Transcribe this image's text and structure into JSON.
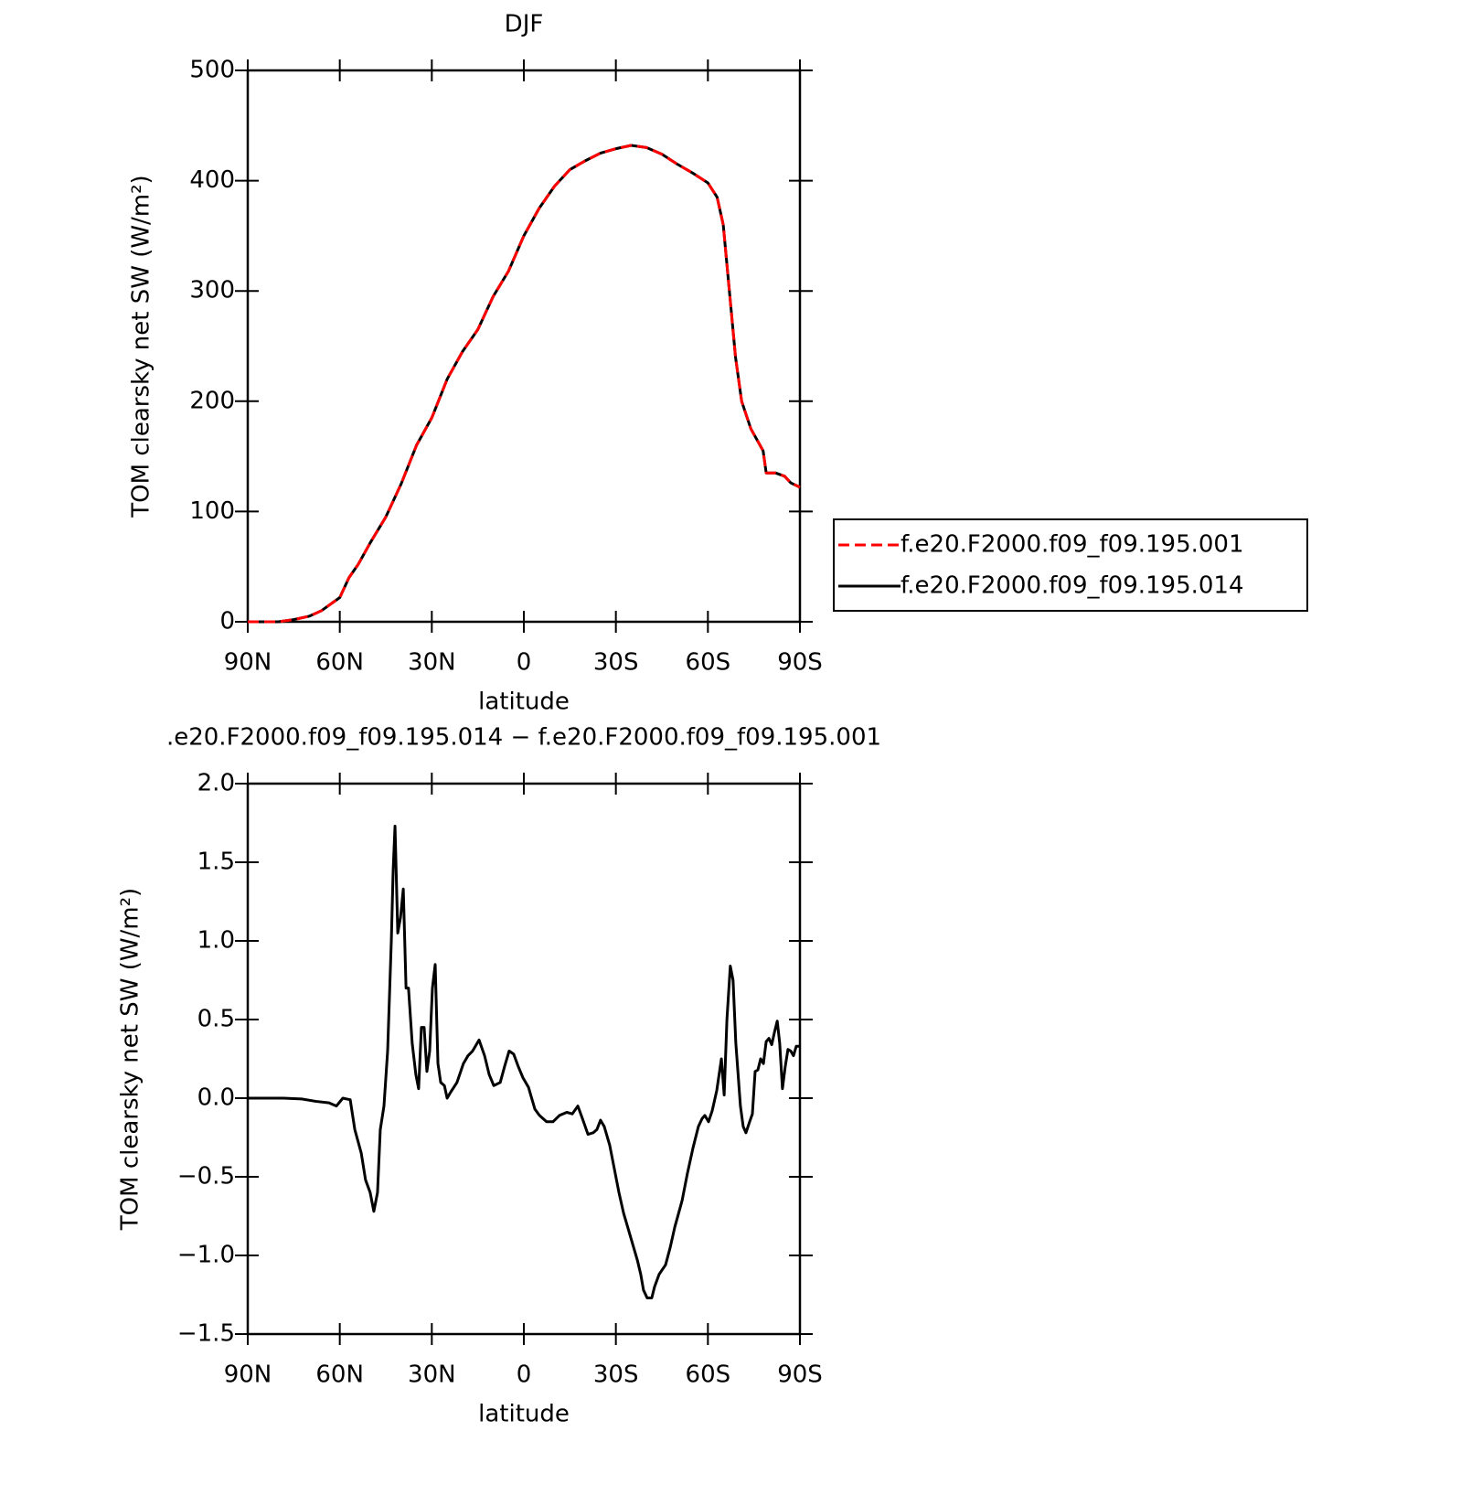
{
  "chart_data": [
    {
      "type": "line",
      "title": "DJF",
      "xlabel": "latitude",
      "ylabel": "TOM clearsky net SW (W/m²)",
      "x": [
        90,
        80,
        75,
        70,
        66,
        60,
        57,
        54,
        50,
        45,
        40,
        35,
        30,
        25,
        20,
        15,
        10,
        5,
        0,
        -5,
        -10,
        -15,
        -20,
        -25,
        -30,
        -35,
        -40,
        -45,
        -50,
        -55,
        -60,
        -63,
        -65,
        -67,
        -69,
        -71,
        -74,
        -77,
        -78,
        -79,
        -82,
        -85,
        -87,
        -90
      ],
      "series": [
        {
          "name": "f.e20.F2000.f09_f09.195.014",
          "color": "#000000",
          "dashed": false,
          "values": [
            0,
            0,
            2,
            5,
            10,
            22,
            40,
            52,
            72,
            95,
            125,
            160,
            185,
            220,
            245,
            265,
            295,
            318,
            350,
            375,
            395,
            410,
            418,
            425,
            429,
            432,
            430,
            424,
            415,
            407,
            398,
            385,
            360,
            300,
            240,
            200,
            175,
            160,
            155,
            135,
            135,
            132,
            126,
            122
          ]
        },
        {
          "name": "f.e20.F2000.f09_f09.195.001",
          "color": "#ff0000",
          "dashed": true,
          "values": [
            0,
            0,
            2,
            5,
            10,
            22,
            40,
            52,
            72,
            95,
            125,
            160,
            185,
            220,
            245,
            265,
            295,
            318,
            350,
            375,
            395,
            410,
            418,
            425,
            429,
            432,
            430,
            424,
            415,
            407,
            398,
            385,
            360,
            300,
            240,
            200,
            175,
            160,
            155,
            135,
            135,
            132,
            126,
            122
          ]
        }
      ],
      "legend_order": [
        1,
        0
      ],
      "legend": "right",
      "xlim": [
        90,
        -90
      ],
      "xticks": [
        {
          "value": 90,
          "label": "90N"
        },
        {
          "value": 60,
          "label": "60N"
        },
        {
          "value": 30,
          "label": "30N"
        },
        0,
        {
          "value": -30,
          "label": "30S"
        },
        {
          "value": -60,
          "label": "60S"
        },
        {
          "value": -90,
          "label": "90S"
        }
      ],
      "ylim": [
        0,
        500
      ],
      "yticks": [
        0,
        100,
        200,
        300,
        400,
        500
      ]
    },
    {
      "type": "line",
      "title": ".e20.F2000.f09_f09.195.014 − f.e20.F2000.f09_f09.195.001",
      "xlabel": "latitude",
      "ylabel": "TOM clearsky net SW (W/m²)",
      "x": [
        90,
        78.4,
        72.4,
        67.9,
        63.5,
        61.1,
        59.0,
        56.6,
        55.1,
        53.0,
        51.6,
        50.1,
        48.9,
        47.7,
        46.8,
        45.6,
        44.4,
        43.2,
        42.6,
        42.0,
        41.1,
        40.2,
        39.3,
        38.4,
        37.6,
        36.4,
        35.2,
        34.3,
        33.4,
        32.5,
        31.6,
        30.7,
        29.8,
        28.9,
        28.0,
        27.1,
        25.9,
        25.0,
        23.8,
        21.8,
        19.7,
        18.2,
        16.7,
        14.6,
        12.8,
        11.3,
        9.8,
        7.7,
        6.3,
        4.8,
        3.3,
        1.8,
        0.3,
        -1.5,
        -3.6,
        -5.1,
        -7.4,
        -9.5,
        -11.6,
        -14.0,
        -15.8,
        -17.6,
        -19.1,
        -20.9,
        -22.6,
        -23.8,
        -25.0,
        -26.2,
        -28.0,
        -29.5,
        -31.0,
        -32.5,
        -34.3,
        -35.5,
        -37.0,
        -38.1,
        -39.0,
        -40.2,
        -41.7,
        -42.6,
        -44.1,
        -46.2,
        -47.7,
        -49.2,
        -51.6,
        -53.3,
        -55.1,
        -56.9,
        -58.1,
        -59.0,
        -60.2,
        -61.4,
        -62.9,
        -64.4,
        -65.3,
        -66.2,
        -67.3,
        -68.2,
        -69.1,
        -70.6,
        -71.5,
        -72.4,
        -73.6,
        -74.5,
        -75.4,
        -76.3,
        -77.2,
        -78.1,
        -79.0,
        -79.9,
        -80.8,
        -81.7,
        -82.6,
        -83.4,
        -84.3,
        -85.2,
        -86.1,
        -87.0,
        -87.9,
        -88.8,
        -90
      ],
      "series": [
        {
          "color": "#000000",
          "dashed": false,
          "values": [
            0,
            0,
            -0.005,
            -0.02,
            -0.03,
            -0.05,
            0,
            -0.01,
            -0.2,
            -0.35,
            -0.52,
            -0.6,
            -0.72,
            -0.6,
            -0.2,
            -0.05,
            0.3,
            1.0,
            1.45,
            1.73,
            1.05,
            1.15,
            1.33,
            0.7,
            0.7,
            0.35,
            0.15,
            0.06,
            0.45,
            0.45,
            0.17,
            0.3,
            0.7,
            0.85,
            0.22,
            0.1,
            0.08,
            0.0,
            0.04,
            0.1,
            0.22,
            0.27,
            0.3,
            0.37,
            0.27,
            0.15,
            0.08,
            0.1,
            0.2,
            0.3,
            0.28,
            0.2,
            0.13,
            0.07,
            -0.07,
            -0.11,
            -0.15,
            -0.15,
            -0.11,
            -0.09,
            -0.1,
            -0.05,
            -0.13,
            -0.23,
            -0.22,
            -0.2,
            -0.14,
            -0.18,
            -0.3,
            -0.45,
            -0.6,
            -0.73,
            -0.85,
            -0.93,
            -1.03,
            -1.12,
            -1.22,
            -1.27,
            -1.27,
            -1.2,
            -1.12,
            -1.06,
            -0.95,
            -0.82,
            -0.65,
            -0.48,
            -0.32,
            -0.18,
            -0.13,
            -0.11,
            -0.15,
            -0.08,
            0.05,
            0.25,
            0.02,
            0.5,
            0.84,
            0.75,
            0.35,
            -0.05,
            -0.18,
            -0.22,
            -0.15,
            -0.1,
            0.17,
            0.18,
            0.25,
            0.22,
            0.36,
            0.38,
            0.34,
            0.42,
            0.49,
            0.35,
            0.06,
            0.2,
            0.31,
            0.3,
            0.27,
            0.33,
            0.33
          ]
        }
      ],
      "xlim": [
        90,
        -90
      ],
      "xticks": [
        {
          "value": 90,
          "label": "90N"
        },
        {
          "value": 60,
          "label": "60N"
        },
        {
          "value": 30,
          "label": "30N"
        },
        0,
        {
          "value": -30,
          "label": "30S"
        },
        {
          "value": -60,
          "label": "60S"
        },
        {
          "value": -90,
          "label": "90S"
        }
      ],
      "ylim": [
        -1.5,
        2.0
      ],
      "yticks": [
        {
          "value": -1.5,
          "label": "−1.5"
        },
        {
          "value": -1.0,
          "label": "−1.0"
        },
        {
          "value": -0.5,
          "label": "−0.5"
        },
        {
          "value": 0,
          "label": "0.0"
        },
        0.5,
        {
          "value": 1,
          "label": "1.0"
        },
        1.5,
        {
          "value": 2,
          "label": "2.0"
        }
      ]
    }
  ]
}
